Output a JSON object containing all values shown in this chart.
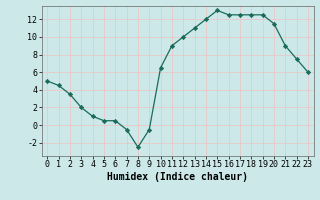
{
  "x": [
    0,
    1,
    2,
    3,
    4,
    5,
    6,
    7,
    8,
    9,
    10,
    11,
    12,
    13,
    14,
    15,
    16,
    17,
    18,
    19,
    20,
    21,
    22,
    23
  ],
  "y": [
    5,
    4.5,
    3.5,
    2,
    1,
    0.5,
    0.5,
    -0.5,
    -2.5,
    -0.5,
    6.5,
    9,
    10,
    11,
    12,
    13,
    12.5,
    12.5,
    12.5,
    12.5,
    11.5,
    9,
    7.5,
    6
  ],
  "line_color": "#1a6b5a",
  "marker": "D",
  "marker_size": 2.2,
  "bg_color": "#cce8e8",
  "grid_color": "#e8c8c8",
  "xlabel": "Humidex (Indice chaleur)",
  "xlim": [
    -0.5,
    23.5
  ],
  "ylim": [
    -3.5,
    13.5
  ],
  "yticks": [
    -2,
    0,
    2,
    4,
    6,
    8,
    10,
    12
  ],
  "xticks": [
    0,
    1,
    2,
    3,
    4,
    5,
    6,
    7,
    8,
    9,
    10,
    11,
    12,
    13,
    14,
    15,
    16,
    17,
    18,
    19,
    20,
    21,
    22,
    23
  ],
  "tick_fontsize": 6,
  "xlabel_fontsize": 7
}
